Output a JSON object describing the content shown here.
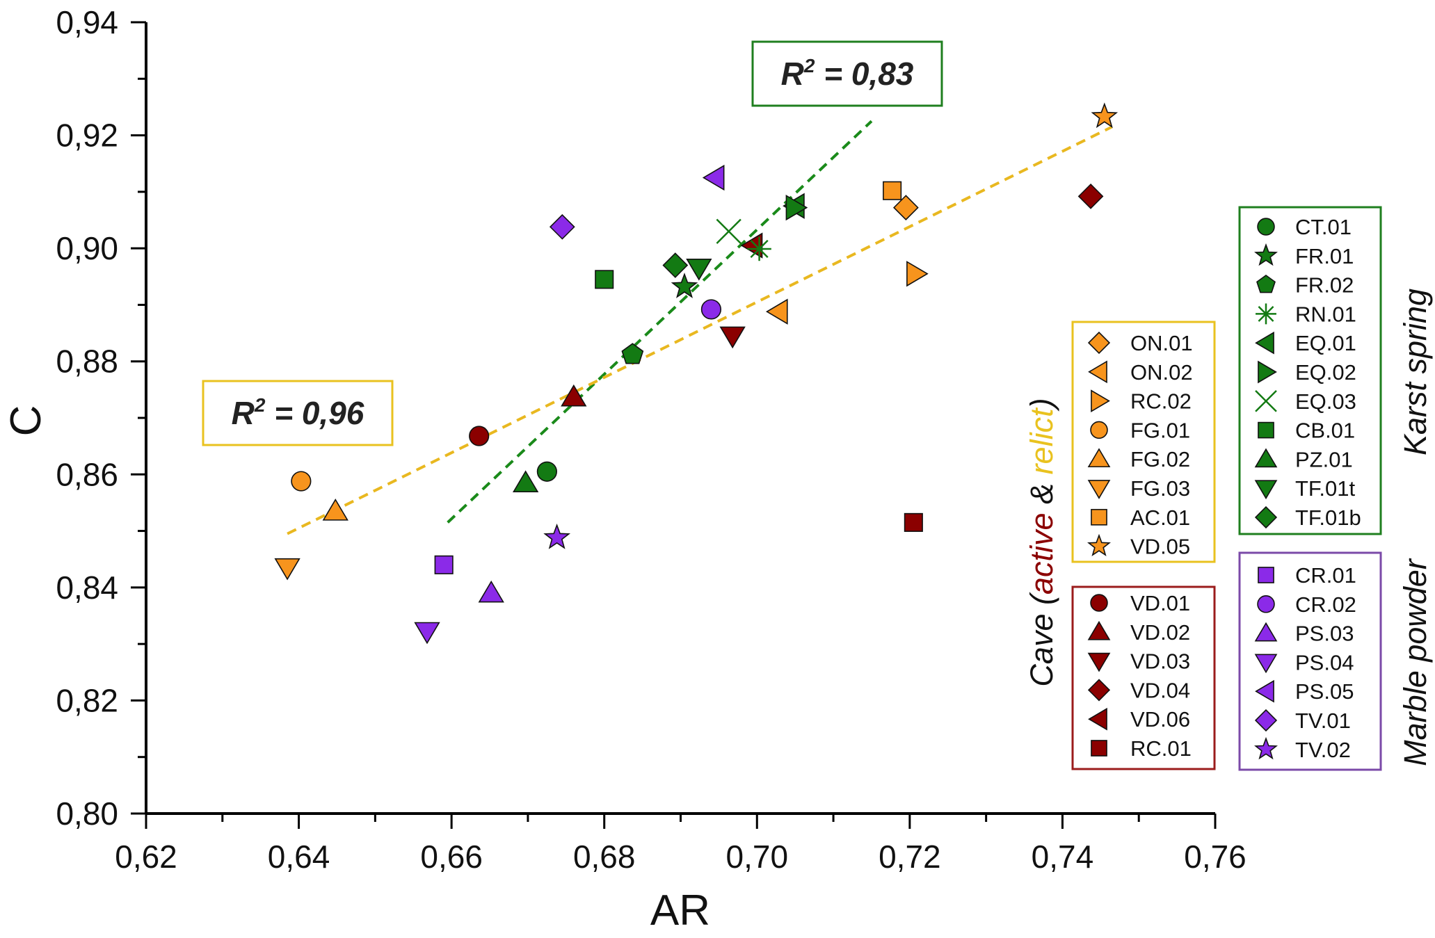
{
  "chart_data": {
    "type": "scatter",
    "title": "",
    "xlabel": "AR",
    "ylabel": "C",
    "xlim": [
      0.62,
      0.76
    ],
    "ylim": [
      0.8,
      0.94
    ],
    "xticks": [
      0.62,
      0.64,
      0.66,
      0.68,
      0.7,
      0.72,
      0.74,
      0.76
    ],
    "yticks": [
      0.8,
      0.82,
      0.84,
      0.86,
      0.88,
      0.9,
      0.92,
      0.94
    ],
    "xtick_labels": [
      "0,62",
      "0,64",
      "0,66",
      "0,68",
      "0,70",
      "0,72",
      "0,74",
      "0,76"
    ],
    "ytick_labels": [
      "0,80",
      "0,82",
      "0,84",
      "0,86",
      "0,88",
      "0,90",
      "0,92",
      "0,94"
    ],
    "colors": {
      "karst": "#137a13",
      "karst_box": "#1f7f1f",
      "relict": "#f7941d",
      "relict_box": "#e9c21f",
      "active": "#8b0000",
      "active_box": "#9b1c1c",
      "marble": "#8b2ae8",
      "marble_box": "#7b4aa8",
      "fit_karst": "#1a8a1a",
      "fit_cave": "#e9b820"
    },
    "fits": [
      {
        "name": "karst",
        "label": "R² = 0,83",
        "r2": "0,83",
        "x": [
          0.6595,
          0.715
        ],
        "y": [
          0.8515,
          0.9225
        ]
      },
      {
        "name": "cave",
        "label": "R² = 0,96",
        "r2": "0,96",
        "x": [
          0.6385,
          0.7465
        ],
        "y": [
          0.8495,
          0.9215
        ]
      }
    ],
    "groups": [
      {
        "id": "karst",
        "label": "Karst spring",
        "color": "#137a13",
        "series": [
          {
            "name": "CT.01",
            "marker": "circle",
            "x": 0.6725,
            "y": 0.8605
          },
          {
            "name": "FR.01",
            "marker": "star",
            "x": 0.6905,
            "y": 0.8932
          },
          {
            "name": "FR.02",
            "marker": "pentagon",
            "x": 0.6837,
            "y": 0.8812
          },
          {
            "name": "RN.01",
            "marker": "asterisk",
            "x": 0.7003,
            "y": 0.8999
          },
          {
            "name": "EQ.01",
            "marker": "tri-left",
            "x": 0.705,
            "y": 0.9075
          },
          {
            "name": "EQ.02",
            "marker": "tri-right",
            "x": 0.705,
            "y": 0.9072
          },
          {
            "name": "EQ.03",
            "marker": "cross",
            "x": 0.6963,
            "y": 0.903
          },
          {
            "name": "CB.01",
            "marker": "square",
            "x": 0.68,
            "y": 0.8945
          },
          {
            "name": "PZ.01",
            "marker": "tri-up",
            "x": 0.6697,
            "y": 0.8585
          },
          {
            "name": "TF.01t",
            "marker": "tri-down",
            "x": 0.6924,
            "y": 0.8965
          },
          {
            "name": "TF.01b",
            "marker": "diamond",
            "x": 0.6893,
            "y": 0.897
          }
        ]
      },
      {
        "id": "relict",
        "label": "relict",
        "color": "#f7941d",
        "series": [
          {
            "name": "ON.01",
            "marker": "diamond",
            "x": 0.7195,
            "y": 0.9072
          },
          {
            "name": "ON.02",
            "marker": "tri-left",
            "x": 0.7028,
            "y": 0.8888
          },
          {
            "name": "RC.02",
            "marker": "tri-right",
            "x": 0.7208,
            "y": 0.8955
          },
          {
            "name": "FG.01",
            "marker": "circle",
            "x": 0.6403,
            "y": 0.8588
          },
          {
            "name": "FG.02",
            "marker": "tri-up",
            "x": 0.6448,
            "y": 0.8535
          },
          {
            "name": "FG.03",
            "marker": "tri-down",
            "x": 0.6385,
            "y": 0.8435
          },
          {
            "name": "AC.01",
            "marker": "square",
            "x": 0.7177,
            "y": 0.9102
          },
          {
            "name": "VD.05",
            "marker": "star",
            "x": 0.7455,
            "y": 0.9233
          }
        ]
      },
      {
        "id": "active",
        "label": "active",
        "color": "#8b0000",
        "series": [
          {
            "name": "VD.01",
            "marker": "circle",
            "x": 0.6636,
            "y": 0.8668
          },
          {
            "name": "VD.02",
            "marker": "tri-up",
            "x": 0.676,
            "y": 0.8737
          },
          {
            "name": "VD.03",
            "marker": "tri-down",
            "x": 0.6968,
            "y": 0.8845
          },
          {
            "name": "VD.04",
            "marker": "diamond",
            "x": 0.7437,
            "y": 0.9092
          },
          {
            "name": "VD.06",
            "marker": "tri-left",
            "x": 0.6995,
            "y": 0.9005
          },
          {
            "name": "RC.01",
            "marker": "square",
            "x": 0.7205,
            "y": 0.8515
          }
        ]
      },
      {
        "id": "marble",
        "label": "Marble powder",
        "color": "#8b2ae8",
        "series": [
          {
            "name": "CR.01",
            "marker": "square",
            "x": 0.659,
            "y": 0.844
          },
          {
            "name": "CR.02",
            "marker": "circle",
            "x": 0.694,
            "y": 0.8892
          },
          {
            "name": "PS.03",
            "marker": "tri-up",
            "x": 0.6652,
            "y": 0.839
          },
          {
            "name": "PS.04",
            "marker": "tri-down",
            "x": 0.6568,
            "y": 0.8322
          },
          {
            "name": "PS.05",
            "marker": "tri-left",
            "x": 0.6945,
            "y": 0.9125
          },
          {
            "name": "TV.01",
            "marker": "diamond",
            "x": 0.6745,
            "y": 0.9038
          },
          {
            "name": "TV.02",
            "marker": "star",
            "x": 0.6738,
            "y": 0.8488
          }
        ]
      }
    ],
    "legend": {
      "karst_title": "Karst spring",
      "cave_prefix": "Cave (",
      "cave_active": "active",
      "cave_amp": " & ",
      "cave_relict": "relict",
      "cave_suffix": ")",
      "marble_title": "Marble powder"
    }
  }
}
